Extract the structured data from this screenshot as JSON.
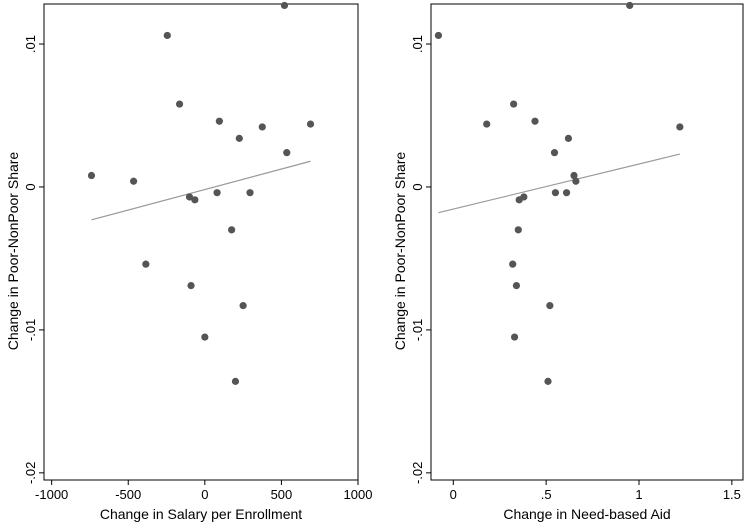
{
  "chart_data": [
    {
      "type": "scatter",
      "xlabel": "Change in Salary per Enrollment",
      "ylabel": "Change in Poor-NonPoor Share",
      "xlim": [
        -1050,
        1000
      ],
      "ylim": [
        -0.0205,
        0.0128
      ],
      "xticks": [
        -1000,
        -500,
        0,
        500,
        1000
      ],
      "xtick_labels": [
        "-1000",
        "-500",
        "0",
        "500",
        "1000"
      ],
      "yticks": [
        -0.02,
        -0.01,
        0,
        0.01
      ],
      "ytick_labels": [
        "-.02",
        "-.01",
        "0",
        ".01"
      ],
      "grid": false,
      "series": [
        {
          "points": [
            {
              "x": -740,
              "y": 0.0008
            },
            {
              "x": -465,
              "y": 0.0004
            },
            {
              "x": -385,
              "y": -0.0054
            },
            {
              "x": -245,
              "y": 0.0106
            },
            {
              "x": -165,
              "y": 0.0058
            },
            {
              "x": -100,
              "y": -0.0007
            },
            {
              "x": -90,
              "y": -0.0069
            },
            {
              "x": -65,
              "y": -0.0009
            },
            {
              "x": 0,
              "y": -0.0105
            },
            {
              "x": 80,
              "y": -0.0004
            },
            {
              "x": 95,
              "y": 0.0046
            },
            {
              "x": 175,
              "y": -0.003
            },
            {
              "x": 200,
              "y": -0.0136
            },
            {
              "x": 225,
              "y": 0.0034
            },
            {
              "x": 250,
              "y": -0.0083
            },
            {
              "x": 295,
              "y": -0.0004
            },
            {
              "x": 375,
              "y": 0.0042
            },
            {
              "x": 520,
              "y": 0.0127
            },
            {
              "x": 535,
              "y": 0.0024
            },
            {
              "x": 690,
              "y": 0.0044
            }
          ],
          "color": "#555555"
        }
      ],
      "fit_line": {
        "x": [
          -740,
          690
        ],
        "y": [
          -0.0023,
          0.0018
        ],
        "color": "#999999"
      }
    },
    {
      "type": "scatter",
      "xlabel": "Change in Need-based Aid",
      "ylabel": "Change in Poor-NonPoor Share",
      "xlim": [
        -0.12,
        1.56
      ],
      "ylim": [
        -0.0205,
        0.0128
      ],
      "xticks": [
        0,
        0.5,
        1,
        1.5
      ],
      "xtick_labels": [
        "0",
        ".5",
        "1",
        "1.5"
      ],
      "yticks": [
        -0.02,
        -0.01,
        0,
        0.01
      ],
      "ytick_labels": [
        "-.02",
        "-.01",
        "0",
        ".01"
      ],
      "grid": false,
      "series": [
        {
          "points": [
            {
              "x": -0.08,
              "y": 0.0106
            },
            {
              "x": 0.18,
              "y": 0.0044
            },
            {
              "x": 0.32,
              "y": -0.0054
            },
            {
              "x": 0.325,
              "y": 0.0058
            },
            {
              "x": 0.33,
              "y": -0.0105
            },
            {
              "x": 0.34,
              "y": -0.0069
            },
            {
              "x": 0.35,
              "y": -0.003
            },
            {
              "x": 0.355,
              "y": -0.0009
            },
            {
              "x": 0.38,
              "y": -0.0007
            },
            {
              "x": 0.44,
              "y": 0.0046
            },
            {
              "x": 0.51,
              "y": -0.0136
            },
            {
              "x": 0.52,
              "y": -0.0083
            },
            {
              "x": 0.545,
              "y": 0.0024
            },
            {
              "x": 0.55,
              "y": -0.0004
            },
            {
              "x": 0.61,
              "y": -0.0004
            },
            {
              "x": 0.62,
              "y": 0.0034
            },
            {
              "x": 0.65,
              "y": 0.0008
            },
            {
              "x": 0.66,
              "y": 0.0004
            },
            {
              "x": 0.95,
              "y": 0.0127
            },
            {
              "x": 1.22,
              "y": 0.0042
            }
          ],
          "color": "#555555"
        }
      ],
      "fit_line": {
        "x": [
          -0.08,
          1.22
        ],
        "y": [
          -0.0018,
          0.0023
        ],
        "color": "#999999"
      }
    }
  ]
}
